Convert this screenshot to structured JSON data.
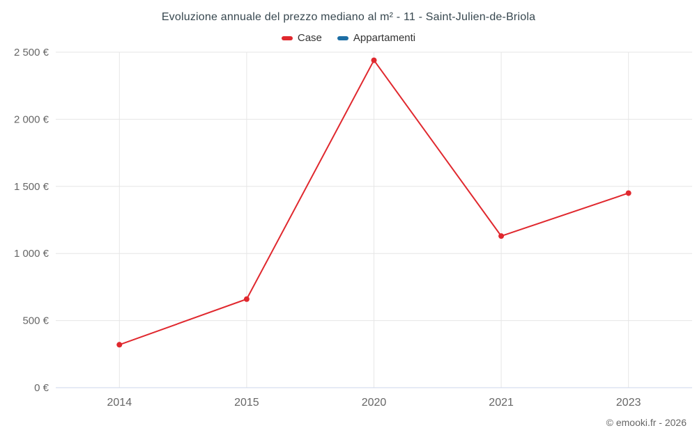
{
  "legend": [
    {
      "label": "Case",
      "color": "#e0282e"
    },
    {
      "label": "Appartamenti",
      "color": "#1c6ea4"
    }
  ],
  "footer": {
    "credit": "© emooki.fr - 2026"
  },
  "chart_data": {
    "type": "line",
    "title": "Evoluzione annuale del prezzo mediano al m² - 11 - Saint-Julien-de-Briola",
    "categories": [
      "2014",
      "2015",
      "2020",
      "2021",
      "2023"
    ],
    "series": [
      {
        "name": "Case",
        "color": "#e0282e",
        "values": [
          320,
          660,
          2440,
          1130,
          1450
        ]
      },
      {
        "name": "Appartamenti",
        "color": "#1c6ea4",
        "values": []
      }
    ],
    "xlabel": "",
    "ylabel": "",
    "ylim": [
      0,
      2500
    ],
    "yticks": [
      {
        "value": 0,
        "label": "0 €"
      },
      {
        "value": 500,
        "label": "500 €"
      },
      {
        "value": 1000,
        "label": "1 000 €"
      },
      {
        "value": 1500,
        "label": "1 500 €"
      },
      {
        "value": 2000,
        "label": "2 000 €"
      },
      {
        "value": 2500,
        "label": "2 500 €"
      }
    ],
    "grid": true,
    "legend_position": "top"
  }
}
